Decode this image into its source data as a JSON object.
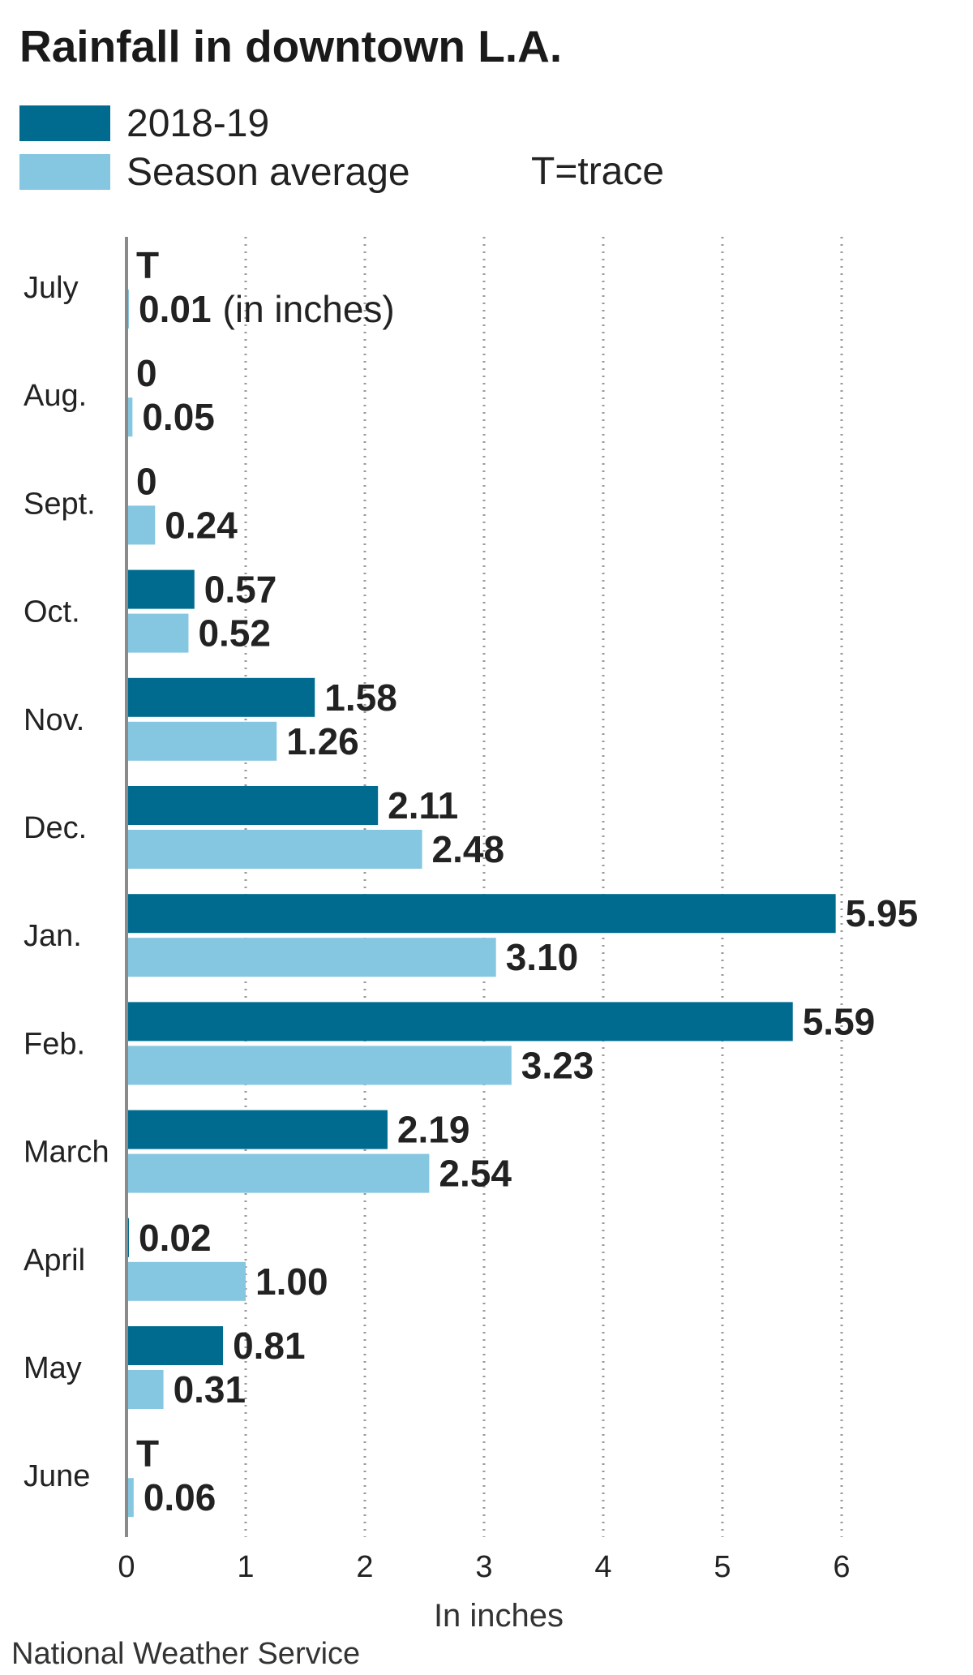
{
  "colors": {
    "series_2018_19": "#006b8f",
    "season_average": "#85c6e0",
    "gridline": "#999999",
    "axis": "#8a8a8a"
  },
  "legend": {
    "items": [
      {
        "label": "2018-19",
        "color": "#006b8f"
      },
      {
        "label": "Season average",
        "color": "#85c6e0"
      }
    ],
    "trace_note": "T=trace"
  },
  "source": "National Weather Service",
  "chart_data": {
    "type": "bar",
    "orientation": "horizontal",
    "title": "Rainfall in downtown L.A.",
    "xlabel": "In inches",
    "ylabel": "",
    "xlim": [
      0,
      6.5
    ],
    "xticks": [
      0,
      1,
      2,
      3,
      4,
      5,
      6
    ],
    "grid": "vertical dotted",
    "legend_position": "top-left",
    "categories": [
      "July",
      "Aug.",
      "Sept.",
      "Oct.",
      "Nov.",
      "Dec.",
      "Jan.",
      "Feb.",
      "March",
      "April",
      "May",
      "June"
    ],
    "series": [
      {
        "name": "2018-19",
        "values": [
          0,
          0,
          0,
          0.57,
          1.58,
          2.11,
          5.95,
          5.59,
          2.19,
          0.02,
          0.81,
          0
        ],
        "labels": [
          "T",
          "0",
          "0",
          "0.57",
          "1.58",
          "2.11",
          "5.95",
          "5.59",
          "2.19",
          "0.02",
          "0.81",
          "T"
        ]
      },
      {
        "name": "Season average",
        "values": [
          0.01,
          0.05,
          0.24,
          0.52,
          1.26,
          2.48,
          3.1,
          3.23,
          2.54,
          1.0,
          0.31,
          0.06
        ],
        "labels": [
          "0.01",
          "0.05",
          "0.24",
          "0.52",
          "1.26",
          "2.48",
          "3.10",
          "3.23",
          "2.54",
          "1.00",
          "0.31",
          "0.06"
        ]
      }
    ],
    "annotations": [
      {
        "category": "July",
        "text": "(in inches)"
      }
    ]
  }
}
